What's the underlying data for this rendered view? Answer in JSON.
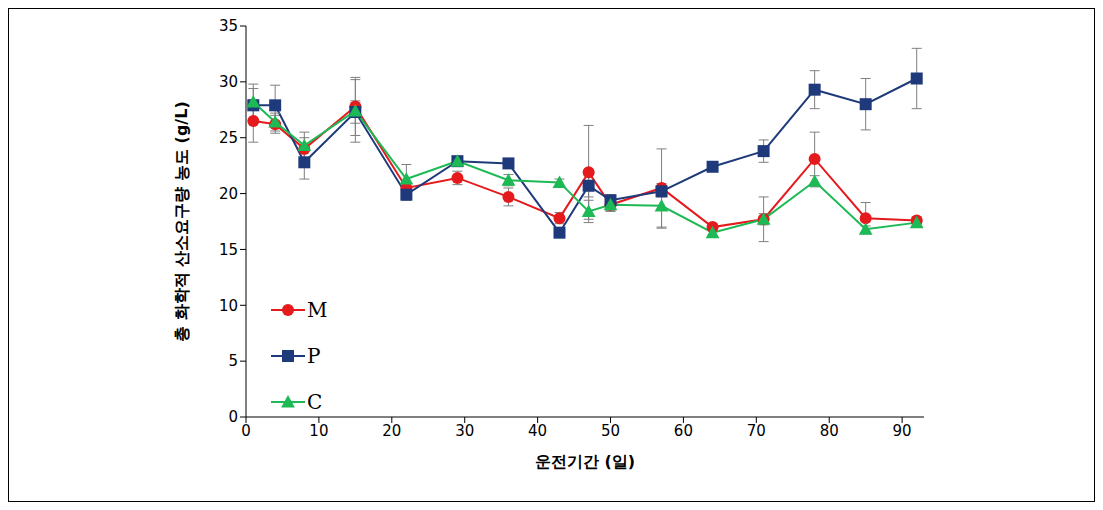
{
  "chart_data": {
    "type": "line",
    "x_label": "운전기간 (일)",
    "y_label": "총 화학적 산소요구량 농도 (g/L)",
    "x": [
      1,
      4,
      8,
      15,
      22,
      29,
      36,
      43,
      47,
      50,
      57,
      64,
      71,
      78,
      85,
      92
    ],
    "xlim": [
      0,
      93
    ],
    "xticks": [
      0,
      10,
      20,
      30,
      40,
      50,
      60,
      70,
      80,
      90
    ],
    "ylim": [
      0,
      35
    ],
    "yticks": [
      0,
      5,
      10,
      15,
      20,
      25,
      30,
      35
    ],
    "grid": false,
    "legend": "lower left",
    "series": [
      {
        "name": "M",
        "color": "#e41a1c",
        "marker": "circle",
        "values": [
          26.5,
          26.2,
          24.0,
          27.8,
          20.5,
          21.4,
          19.7,
          17.8,
          21.9,
          19.0,
          20.5,
          17.0,
          17.7,
          23.1,
          17.8,
          17.6
        ],
        "errors": [
          1.9,
          0.8,
          1.0,
          2.6,
          0.5,
          0.6,
          0.8,
          0.5,
          4.2,
          0.6,
          3.5,
          0.3,
          2.0,
          2.4,
          1.4,
          0.3
        ]
      },
      {
        "name": "P",
        "color": "#1f3a7a",
        "marker": "square",
        "values": [
          27.9,
          27.9,
          22.8,
          27.3,
          19.9,
          22.9,
          22.7,
          16.5,
          20.7,
          19.4,
          20.2,
          22.4,
          23.8,
          29.3,
          28.0,
          30.3
        ],
        "errors": [
          1.5,
          1.8,
          1.5,
          1.0,
          0.5,
          0.3,
          0.3,
          0.3,
          1.0,
          0.5,
          0.5,
          0.3,
          1.0,
          1.7,
          2.3,
          2.7
        ]
      },
      {
        "name": "C",
        "color": "#1db954",
        "marker": "triangle",
        "values": [
          28.2,
          26.4,
          24.3,
          27.4,
          21.3,
          22.9,
          21.2,
          21.0,
          18.4,
          19.0,
          18.9,
          16.5,
          17.7,
          21.1,
          16.8,
          17.4
        ],
        "errors": [
          1.6,
          0.8,
          1.2,
          2.8,
          1.3,
          0.4,
          0.5,
          0.3,
          1.0,
          0.5,
          2.0,
          0.3,
          0.5,
          0.5,
          0.3,
          0.3
        ]
      }
    ]
  }
}
